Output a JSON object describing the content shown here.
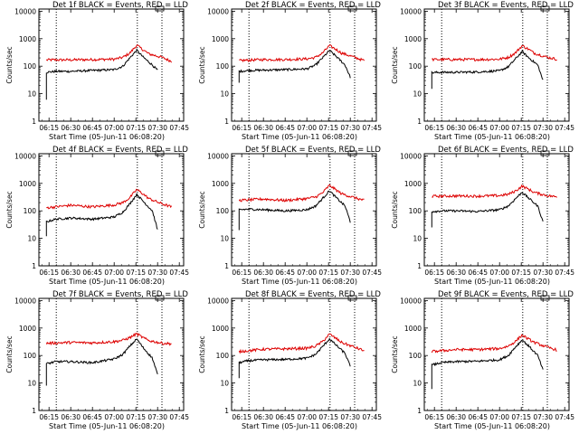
{
  "figure": {
    "tick_labels_x": [
      "06:15",
      "06:30",
      "06:45",
      "07:00",
      "07:15",
      "07:30",
      "07:45"
    ],
    "tick_values_y": [
      1,
      10,
      100,
      1000,
      10000
    ],
    "tick_labels_y": [
      "1",
      "10",
      "100",
      "1000",
      "10000"
    ],
    "ylabel": "Counts/sec",
    "xlabel": "Start Time (05-Jun-11 06:08:20)",
    "colors": {
      "events": "#000000",
      "lld": "#dd0000",
      "axes": "#000000"
    }
  },
  "chart_data": [
    {
      "type": "line",
      "title": "Det 1f BLACK = Events, RED = LLD",
      "xlabel": "Start Time (05-Jun-11 06:08:20)",
      "ylabel": "Counts/sec",
      "y_scale": "log",
      "xlim": [
        "06:08",
        "07:48"
      ],
      "ylim": [
        1,
        12000
      ],
      "vlines": [
        "06:20",
        "07:16",
        "07:33"
      ],
      "lld_profile": [
        [
          6.22,
          170
        ],
        [
          6.5,
          170
        ],
        [
          6.75,
          175
        ],
        [
          7.0,
          180
        ],
        [
          7.1,
          210
        ],
        [
          7.18,
          300
        ],
        [
          7.26,
          580
        ],
        [
          7.33,
          400
        ],
        [
          7.4,
          280
        ],
        [
          7.55,
          210
        ],
        [
          7.66,
          150
        ]
      ],
      "events_profile": [
        [
          6.22,
          60
        ],
        [
          6.33,
          65
        ],
        [
          6.5,
          65
        ],
        [
          6.75,
          70
        ],
        [
          7.0,
          75
        ],
        [
          7.1,
          100
        ],
        [
          7.18,
          200
        ],
        [
          7.26,
          380
        ],
        [
          7.33,
          220
        ],
        [
          7.44,
          110
        ],
        [
          7.5,
          70
        ]
      ],
      "events_start_low": 6
    },
    {
      "type": "line",
      "title": "Det 2f BLACK = Events, RED = LLD",
      "xlabel": "Start Time (05-Jun-11 06:08:20)",
      "ylabel": "Counts/sec",
      "y_scale": "log",
      "xlim": [
        "06:08",
        "07:48"
      ],
      "ylim": [
        1,
        12000
      ],
      "vlines": [
        "06:20",
        "07:16",
        "07:33"
      ],
      "lld_profile": [
        [
          6.22,
          160
        ],
        [
          6.5,
          175
        ],
        [
          6.75,
          175
        ],
        [
          7.0,
          185
        ],
        [
          7.1,
          210
        ],
        [
          7.18,
          300
        ],
        [
          7.26,
          560
        ],
        [
          7.33,
          420
        ],
        [
          7.4,
          300
        ],
        [
          7.55,
          210
        ],
        [
          7.66,
          160
        ]
      ],
      "events_profile": [
        [
          6.22,
          65
        ],
        [
          6.33,
          70
        ],
        [
          6.5,
          72
        ],
        [
          6.75,
          75
        ],
        [
          7.0,
          80
        ],
        [
          7.1,
          110
        ],
        [
          7.18,
          200
        ],
        [
          7.26,
          370
        ],
        [
          7.33,
          240
        ],
        [
          7.44,
          110
        ],
        [
          7.5,
          40
        ]
      ],
      "events_start_low": 25
    },
    {
      "type": "line",
      "title": "Det 3f BLACK = Events, RED = LLD",
      "xlabel": "Start Time (05-Jun-11 06:08:20)",
      "ylabel": "Counts/sec",
      "y_scale": "log",
      "xlim": [
        "06:08",
        "07:48"
      ],
      "ylim": [
        1,
        12000
      ],
      "vlines": [
        "06:20",
        "07:16",
        "07:33"
      ],
      "lld_profile": [
        [
          6.22,
          175
        ],
        [
          6.5,
          175
        ],
        [
          6.75,
          175
        ],
        [
          7.0,
          180
        ],
        [
          7.1,
          210
        ],
        [
          7.18,
          300
        ],
        [
          7.26,
          560
        ],
        [
          7.33,
          420
        ],
        [
          7.4,
          300
        ],
        [
          7.55,
          210
        ],
        [
          7.66,
          180
        ]
      ],
      "events_profile": [
        [
          6.22,
          58
        ],
        [
          6.33,
          60
        ],
        [
          6.5,
          60
        ],
        [
          6.75,
          62
        ],
        [
          7.0,
          68
        ],
        [
          7.1,
          95
        ],
        [
          7.18,
          180
        ],
        [
          7.26,
          340
        ],
        [
          7.33,
          210
        ],
        [
          7.44,
          110
        ],
        [
          7.5,
          30
        ]
      ],
      "events_start_low": 15
    },
    {
      "type": "line",
      "title": "Det 4f BLACK = Events, RED = LLD",
      "xlabel": "Start Time (05-Jun-11 06:08:20)",
      "ylabel": "Counts/sec",
      "y_scale": "log",
      "xlim": [
        "06:08",
        "07:48"
      ],
      "ylim": [
        1,
        12000
      ],
      "vlines": [
        "06:20",
        "07:16",
        "07:33"
      ],
      "lld_profile": [
        [
          6.22,
          130
        ],
        [
          6.5,
          160
        ],
        [
          6.75,
          140
        ],
        [
          7.0,
          165
        ],
        [
          7.1,
          200
        ],
        [
          7.18,
          300
        ],
        [
          7.26,
          600
        ],
        [
          7.33,
          420
        ],
        [
          7.4,
          280
        ],
        [
          7.55,
          180
        ],
        [
          7.66,
          140
        ]
      ],
      "events_profile": [
        [
          6.22,
          40
        ],
        [
          6.33,
          50
        ],
        [
          6.5,
          55
        ],
        [
          6.75,
          50
        ],
        [
          7.0,
          60
        ],
        [
          7.1,
          90
        ],
        [
          7.18,
          180
        ],
        [
          7.26,
          400
        ],
        [
          7.33,
          230
        ],
        [
          7.44,
          100
        ],
        [
          7.5,
          20
        ]
      ],
      "events_start_low": 12
    },
    {
      "type": "line",
      "title": "Det 5f BLACK = Events, RED = LLD",
      "xlabel": "Start Time (05-Jun-11 06:08:20)",
      "ylabel": "Counts/sec",
      "y_scale": "log",
      "xlim": [
        "06:08",
        "07:48"
      ],
      "ylim": [
        1,
        12000
      ],
      "vlines": [
        "06:20",
        "07:16",
        "07:33"
      ],
      "lld_profile": [
        [
          6.22,
          240
        ],
        [
          6.5,
          270
        ],
        [
          6.75,
          240
        ],
        [
          7.0,
          280
        ],
        [
          7.1,
          320
        ],
        [
          7.18,
          450
        ],
        [
          7.26,
          850
        ],
        [
          7.33,
          600
        ],
        [
          7.4,
          420
        ],
        [
          7.55,
          300
        ],
        [
          7.66,
          240
        ]
      ],
      "events_profile": [
        [
          6.22,
          110
        ],
        [
          6.33,
          115
        ],
        [
          6.5,
          110
        ],
        [
          6.75,
          100
        ],
        [
          7.0,
          110
        ],
        [
          7.1,
          150
        ],
        [
          7.18,
          280
        ],
        [
          7.26,
          540
        ],
        [
          7.33,
          320
        ],
        [
          7.44,
          150
        ],
        [
          7.5,
          40
        ]
      ],
      "events_start_low": 20
    },
    {
      "type": "line",
      "title": "Det 6f BLACK = Events, RED = LLD",
      "xlabel": "Start Time (05-Jun-11 06:08:20)",
      "ylabel": "Counts/sec",
      "y_scale": "log",
      "xlim": [
        "06:08",
        "07:48"
      ],
      "ylim": [
        1,
        12000
      ],
      "vlines": [
        "06:20",
        "07:16",
        "07:33"
      ],
      "lld_profile": [
        [
          6.22,
          340
        ],
        [
          6.5,
          350
        ],
        [
          6.75,
          345
        ],
        [
          7.0,
          360
        ],
        [
          7.1,
          400
        ],
        [
          7.18,
          520
        ],
        [
          7.26,
          800
        ],
        [
          7.33,
          620
        ],
        [
          7.4,
          470
        ],
        [
          7.55,
          360
        ],
        [
          7.66,
          320
        ]
      ],
      "events_profile": [
        [
          6.22,
          95
        ],
        [
          6.33,
          100
        ],
        [
          6.5,
          100
        ],
        [
          6.75,
          95
        ],
        [
          7.0,
          110
        ],
        [
          7.1,
          150
        ],
        [
          7.18,
          270
        ],
        [
          7.26,
          480
        ],
        [
          7.33,
          300
        ],
        [
          7.44,
          150
        ],
        [
          7.5,
          40
        ]
      ],
      "events_start_low": 25
    },
    {
      "type": "line",
      "title": "Det 7f BLACK = Events, RED = LLD",
      "xlabel": "Start Time (05-Jun-11 06:08:20)",
      "ylabel": "Counts/sec",
      "y_scale": "log",
      "xlim": [
        "06:08",
        "07:48"
      ],
      "ylim": [
        1,
        12000
      ],
      "vlines": [
        "06:20",
        "07:16",
        "07:33"
      ],
      "lld_profile": [
        [
          6.22,
          280
        ],
        [
          6.5,
          300
        ],
        [
          6.75,
          290
        ],
        [
          7.0,
          320
        ],
        [
          7.1,
          360
        ],
        [
          7.18,
          450
        ],
        [
          7.26,
          620
        ],
        [
          7.33,
          450
        ],
        [
          7.4,
          350
        ],
        [
          7.55,
          280
        ],
        [
          7.66,
          270
        ]
      ],
      "events_profile": [
        [
          6.22,
          50
        ],
        [
          6.33,
          60
        ],
        [
          6.5,
          60
        ],
        [
          6.75,
          55
        ],
        [
          7.0,
          75
        ],
        [
          7.1,
          110
        ],
        [
          7.18,
          220
        ],
        [
          7.26,
          400
        ],
        [
          7.33,
          200
        ],
        [
          7.44,
          80
        ],
        [
          7.5,
          20
        ]
      ],
      "events_start_low": 8
    },
    {
      "type": "line",
      "title": "Det 8f BLACK = Events, RED = LLD",
      "xlabel": "Start Time (05-Jun-11 06:08:20)",
      "ylabel": "Counts/sec",
      "y_scale": "log",
      "xlim": [
        "06:08",
        "07:48"
      ],
      "ylim": [
        1,
        12000
      ],
      "vlines": [
        "06:20",
        "07:16",
        "07:33"
      ],
      "lld_profile": [
        [
          6.22,
          140
        ],
        [
          6.5,
          170
        ],
        [
          6.75,
          175
        ],
        [
          7.0,
          185
        ],
        [
          7.1,
          220
        ],
        [
          7.18,
          320
        ],
        [
          7.26,
          600
        ],
        [
          7.33,
          430
        ],
        [
          7.4,
          300
        ],
        [
          7.55,
          200
        ],
        [
          7.66,
          150
        ]
      ],
      "events_profile": [
        [
          6.22,
          55
        ],
        [
          6.33,
          65
        ],
        [
          6.5,
          70
        ],
        [
          6.75,
          72
        ],
        [
          7.0,
          80
        ],
        [
          7.1,
          110
        ],
        [
          7.18,
          210
        ],
        [
          7.26,
          400
        ],
        [
          7.33,
          250
        ],
        [
          7.44,
          120
        ],
        [
          7.5,
          40
        ]
      ],
      "events_start_low": 15
    },
    {
      "type": "line",
      "title": "Det 9f BLACK = Events, RED = LLD",
      "xlabel": "Start Time (05-Jun-11 06:08:20)",
      "ylabel": "Counts/sec",
      "y_scale": "log",
      "xlim": [
        "06:08",
        "07:48"
      ],
      "ylim": [
        1,
        12000
      ],
      "vlines": [
        "06:20",
        "07:16",
        "07:33"
      ],
      "lld_profile": [
        [
          6.22,
          140
        ],
        [
          6.5,
          165
        ],
        [
          6.75,
          165
        ],
        [
          7.0,
          180
        ],
        [
          7.1,
          220
        ],
        [
          7.18,
          320
        ],
        [
          7.26,
          560
        ],
        [
          7.33,
          400
        ],
        [
          7.4,
          300
        ],
        [
          7.55,
          200
        ],
        [
          7.66,
          160
        ]
      ],
      "events_profile": [
        [
          6.22,
          45
        ],
        [
          6.33,
          55
        ],
        [
          6.5,
          60
        ],
        [
          6.75,
          62
        ],
        [
          7.0,
          70
        ],
        [
          7.1,
          100
        ],
        [
          7.18,
          200
        ],
        [
          7.26,
          370
        ],
        [
          7.33,
          230
        ],
        [
          7.44,
          100
        ],
        [
          7.5,
          30
        ]
      ],
      "events_start_low": 6
    }
  ]
}
